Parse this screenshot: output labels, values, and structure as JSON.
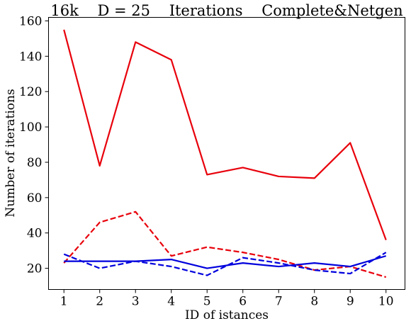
{
  "chart_data": {
    "type": "line",
    "title": "16k    D = 25    Iterations    Complete&Netgen",
    "xlabel": "ID of istances",
    "ylabel": "Number of iterations",
    "x": [
      1,
      2,
      3,
      4,
      5,
      6,
      7,
      8,
      9,
      10
    ],
    "xlim": [
      0.57,
      10.53
    ],
    "ylim": [
      8,
      162
    ],
    "xticks": [
      "1",
      "2",
      "3",
      "4",
      "5",
      "6",
      "7",
      "8",
      "9",
      "10"
    ],
    "yticks": [
      20,
      40,
      60,
      80,
      100,
      120,
      140,
      160
    ],
    "grid": false,
    "legend": "none",
    "series": [
      {
        "color": "#e8000b",
        "dash": "solid",
        "values": [
          155,
          78,
          148,
          138,
          73,
          77,
          72,
          71,
          91,
          36
        ]
      },
      {
        "color": "#e8000b",
        "dash": "dashed",
        "values": [
          23,
          46,
          52,
          27,
          32,
          29,
          25,
          19,
          21,
          15
        ]
      },
      {
        "color": "#0000dd",
        "dash": "solid",
        "values": [
          24,
          24,
          24,
          25,
          20,
          23,
          21,
          23,
          21,
          27
        ]
      },
      {
        "color": "#0000dd",
        "dash": "dashed",
        "values": [
          28,
          20,
          24,
          21,
          16,
          26,
          23,
          19,
          17,
          29
        ]
      }
    ]
  }
}
